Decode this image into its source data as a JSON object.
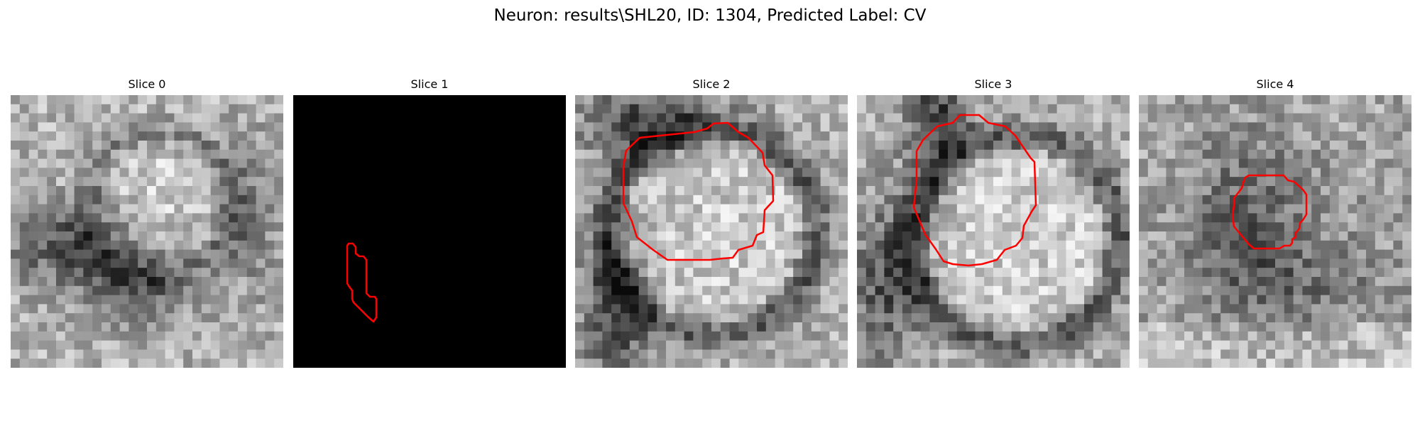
{
  "figure": {
    "title": "Neuron: results\\SHL20, ID: 1304, Predicted Label: CV"
  },
  "panels": [
    {
      "title": "Slice 0"
    },
    {
      "title": "Slice 1"
    },
    {
      "title": "Slice 2"
    },
    {
      "title": "Slice 3"
    },
    {
      "title": "Slice 4"
    }
  ],
  "colors": {
    "contour": "#ff0000",
    "background": "#ffffff"
  }
}
